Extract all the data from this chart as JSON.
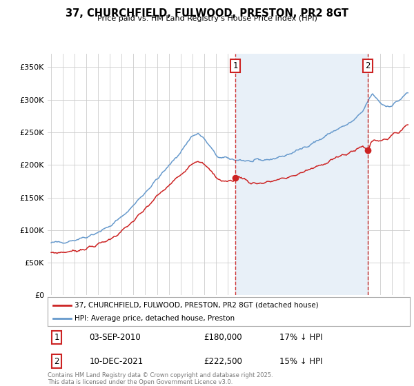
{
  "title": "37, CHURCHFIELD, FULWOOD, PRESTON, PR2 8GT",
  "subtitle": "Price paid vs. HM Land Registry's House Price Index (HPI)",
  "ylabel_ticks": [
    "£0",
    "£50K",
    "£100K",
    "£150K",
    "£200K",
    "£250K",
    "£300K",
    "£350K"
  ],
  "ytick_values": [
    0,
    50000,
    100000,
    150000,
    200000,
    250000,
    300000,
    350000
  ],
  "ylim": [
    0,
    370000
  ],
  "xlim_start": 1994.7,
  "xlim_end": 2025.5,
  "hpi_color": "#6699cc",
  "property_color": "#cc2222",
  "shade_color": "#e8f0f8",
  "marker1_x": 2010.67,
  "marker1_y": 180000,
  "marker2_x": 2021.94,
  "marker2_y": 222500,
  "annotation1": [
    "1",
    "03-SEP-2010",
    "£180,000",
    "17% ↓ HPI"
  ],
  "annotation2": [
    "2",
    "10-DEC-2021",
    "£222,500",
    "15% ↓ HPI"
  ],
  "legend_property": "37, CHURCHFIELD, FULWOOD, PRESTON, PR2 8GT (detached house)",
  "legend_hpi": "HPI: Average price, detached house, Preston",
  "footnote": "Contains HM Land Registry data © Crown copyright and database right 2025.\nThis data is licensed under the Open Government Licence v3.0.",
  "background_color": "#ffffff",
  "grid_color": "#cccccc"
}
